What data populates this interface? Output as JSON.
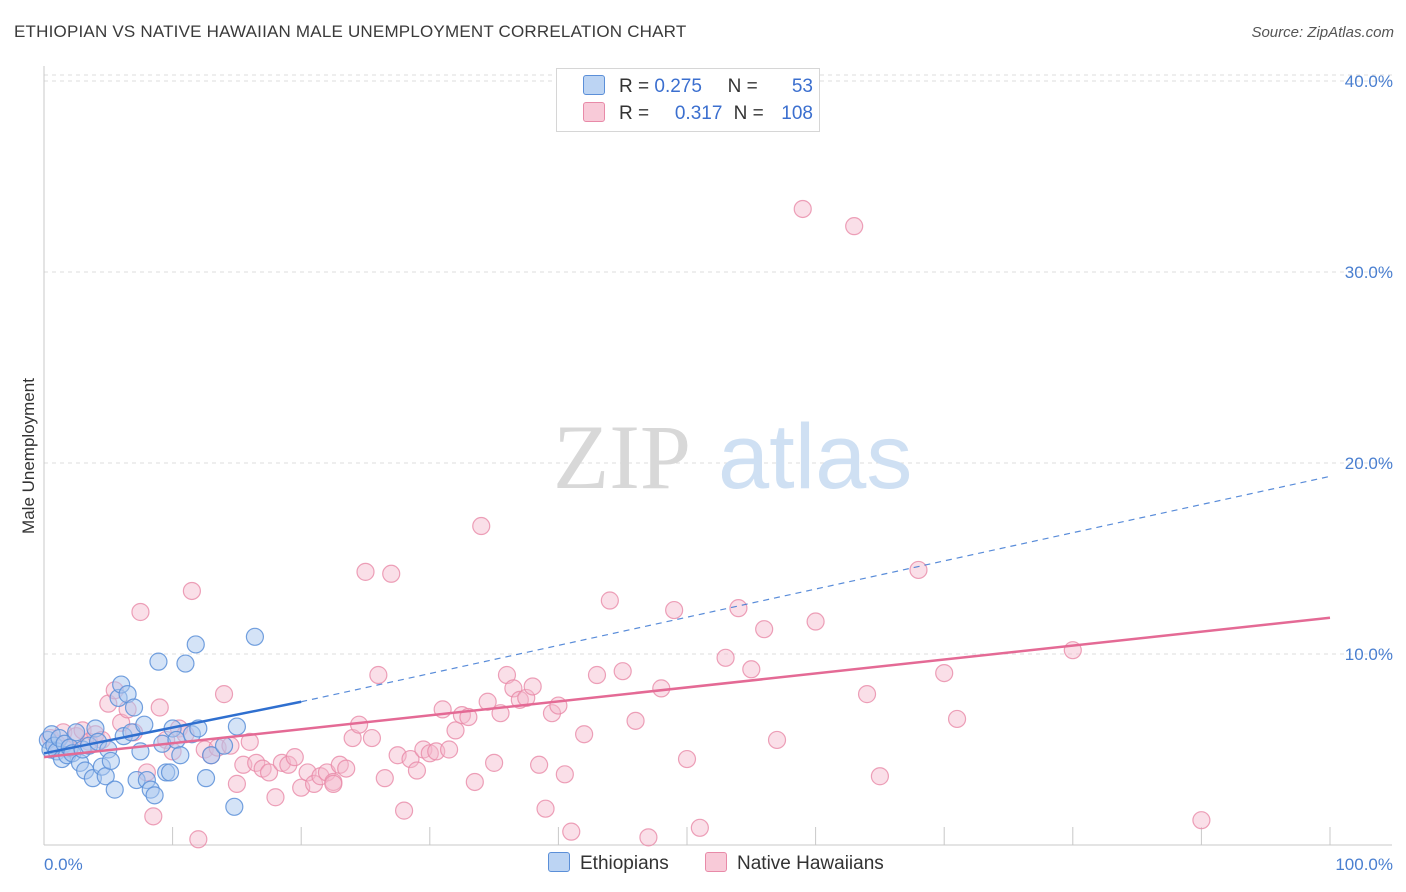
{
  "title": "ETHIOPIAN VS NATIVE HAWAIIAN MALE UNEMPLOYMENT CORRELATION CHART",
  "source": "Source: ZipAtlas.com",
  "watermark": {
    "zip": "ZIP",
    "atlas": "atlas"
  },
  "colors": {
    "blue_fill": "#a9c8f0",
    "blue_stroke": "#5b8fd8",
    "blue_line": "#2f6fcf",
    "pink_fill": "#f5b8cb",
    "pink_stroke": "#e88aa8",
    "pink_line": "#e46a95",
    "tick_text": "#4a7fd0",
    "grid": "#dddddd"
  },
  "legend": {
    "rows": [
      {
        "r_label": "R =",
        "r_value": "0.275",
        "n_label": "N =",
        "n_value": "53"
      },
      {
        "r_label": "R =",
        "r_value": "0.317",
        "n_label": "N =",
        "n_value": "108"
      }
    ]
  },
  "bottom_legend": [
    "Ethiopians",
    "Native Hawaiians"
  ],
  "chart_data": {
    "type": "scatter",
    "title": "ETHIOPIAN VS NATIVE HAWAIIAN MALE UNEMPLOYMENT CORRELATION CHART",
    "xlabel": "",
    "ylabel": "Male Unemployment",
    "xlim": [
      0,
      100
    ],
    "ylim": [
      0,
      40
    ],
    "x_tick_labels": [
      "0.0%",
      "100.0%"
    ],
    "y_ticks": [
      10,
      20,
      30,
      40
    ],
    "y_tick_labels": [
      "10.0%",
      "20.0%",
      "30.0%",
      "40.0%"
    ],
    "grid": true,
    "series": [
      {
        "name": "Ethiopians",
        "r": 0.275,
        "n": 53,
        "trend": {
          "x0": 0,
          "y0": 4.8,
          "x1": 20,
          "y1": 7.5,
          "dashed_to_x": 100,
          "dashed_to_y": 19.3
        },
        "points": [
          [
            0.3,
            5.5
          ],
          [
            0.5,
            5.0
          ],
          [
            0.6,
            5.8
          ],
          [
            0.8,
            5.2
          ],
          [
            1.0,
            4.9
          ],
          [
            1.2,
            5.6
          ],
          [
            1.4,
            4.5
          ],
          [
            1.6,
            5.3
          ],
          [
            1.8,
            4.7
          ],
          [
            2.0,
            5.1
          ],
          [
            2.2,
            4.8
          ],
          [
            2.5,
            5.9
          ],
          [
            2.8,
            4.3
          ],
          [
            3.0,
            5.0
          ],
          [
            3.2,
            3.9
          ],
          [
            3.5,
            5.2
          ],
          [
            3.8,
            3.5
          ],
          [
            4.0,
            6.1
          ],
          [
            4.2,
            5.4
          ],
          [
            4.5,
            4.1
          ],
          [
            4.8,
            3.6
          ],
          [
            5.0,
            5.0
          ],
          [
            5.2,
            4.4
          ],
          [
            5.5,
            2.9
          ],
          [
            5.8,
            7.7
          ],
          [
            6.0,
            8.4
          ],
          [
            6.2,
            5.7
          ],
          [
            6.5,
            7.9
          ],
          [
            6.8,
            5.9
          ],
          [
            7.0,
            7.2
          ],
          [
            7.2,
            3.4
          ],
          [
            7.5,
            4.9
          ],
          [
            7.8,
            6.3
          ],
          [
            8.0,
            3.4
          ],
          [
            8.3,
            2.9
          ],
          [
            8.6,
            2.6
          ],
          [
            8.9,
            9.6
          ],
          [
            9.2,
            5.3
          ],
          [
            9.5,
            3.8
          ],
          [
            9.8,
            3.8
          ],
          [
            10.0,
            6.1
          ],
          [
            10.3,
            5.5
          ],
          [
            10.6,
            4.7
          ],
          [
            11.0,
            9.5
          ],
          [
            11.5,
            5.8
          ],
          [
            12.0,
            6.1
          ],
          [
            12.6,
            3.5
          ],
          [
            13.0,
            4.7
          ],
          [
            14.0,
            5.2
          ],
          [
            15.0,
            6.2
          ],
          [
            11.8,
            10.5
          ],
          [
            14.8,
            2.0
          ],
          [
            16.4,
            10.9
          ]
        ]
      },
      {
        "name": "Native Hawaiians",
        "r": 0.317,
        "n": 108,
        "trend": {
          "x0": 0,
          "y0": 4.6,
          "x1": 100,
          "y1": 11.9
        },
        "points": [
          [
            0.5,
            5.6
          ],
          [
            1.0,
            5.3
          ],
          [
            1.5,
            5.9
          ],
          [
            2.0,
            5.0
          ],
          [
            2.5,
            5.7
          ],
          [
            3.0,
            6.0
          ],
          [
            3.5,
            5.4
          ],
          [
            4.0,
            5.8
          ],
          [
            4.5,
            5.5
          ],
          [
            5.0,
            7.4
          ],
          [
            5.5,
            8.1
          ],
          [
            6.0,
            6.4
          ],
          [
            6.5,
            7.1
          ],
          [
            7.0,
            5.9
          ],
          [
            7.5,
            12.2
          ],
          [
            8.0,
            3.8
          ],
          [
            8.5,
            1.5
          ],
          [
            9.0,
            7.2
          ],
          [
            9.5,
            5.5
          ],
          [
            10.0,
            4.9
          ],
          [
            10.5,
            6.1
          ],
          [
            11.0,
            5.8
          ],
          [
            11.5,
            13.3
          ],
          [
            12.0,
            0.3
          ],
          [
            12.5,
            5.0
          ],
          [
            13.0,
            4.7
          ],
          [
            13.5,
            5.1
          ],
          [
            14.0,
            7.9
          ],
          [
            14.5,
            5.2
          ],
          [
            15.0,
            3.2
          ],
          [
            15.5,
            4.2
          ],
          [
            16.0,
            5.4
          ],
          [
            16.5,
            4.3
          ],
          [
            17.0,
            4.0
          ],
          [
            17.5,
            3.8
          ],
          [
            18.0,
            2.5
          ],
          [
            18.5,
            4.3
          ],
          [
            19.0,
            4.2
          ],
          [
            19.5,
            4.6
          ],
          [
            20.0,
            3.0
          ],
          [
            20.5,
            3.8
          ],
          [
            21.0,
            3.2
          ],
          [
            21.5,
            3.6
          ],
          [
            22.0,
            3.8
          ],
          [
            22.5,
            3.3
          ],
          [
            23.0,
            4.2
          ],
          [
            23.5,
            4.0
          ],
          [
            24.0,
            5.6
          ],
          [
            24.5,
            6.3
          ],
          [
            25.0,
            14.3
          ],
          [
            25.5,
            5.6
          ],
          [
            26.0,
            8.9
          ],
          [
            26.5,
            3.5
          ],
          [
            27.0,
            14.2
          ],
          [
            27.5,
            4.7
          ],
          [
            28.0,
            1.8
          ],
          [
            28.5,
            4.5
          ],
          [
            29.0,
            3.9
          ],
          [
            29.5,
            5.0
          ],
          [
            30.0,
            4.8
          ],
          [
            30.5,
            4.9
          ],
          [
            31.0,
            7.1
          ],
          [
            31.5,
            5.0
          ],
          [
            32.0,
            6.0
          ],
          [
            32.5,
            6.8
          ],
          [
            33.0,
            6.7
          ],
          [
            33.5,
            3.3
          ],
          [
            34.0,
            16.7
          ],
          [
            34.5,
            7.5
          ],
          [
            35.0,
            4.3
          ],
          [
            35.5,
            6.9
          ],
          [
            36.0,
            8.9
          ],
          [
            36.5,
            8.2
          ],
          [
            37.0,
            7.6
          ],
          [
            37.5,
            7.7
          ],
          [
            38.0,
            8.3
          ],
          [
            38.5,
            4.2
          ],
          [
            39.0,
            1.9
          ],
          [
            39.5,
            6.9
          ],
          [
            40.0,
            7.3
          ],
          [
            40.5,
            3.7
          ],
          [
            41.0,
            0.7
          ],
          [
            42.0,
            5.8
          ],
          [
            43.0,
            8.9
          ],
          [
            44.0,
            12.8
          ],
          [
            45.0,
            9.1
          ],
          [
            46.0,
            6.5
          ],
          [
            47.0,
            0.4
          ],
          [
            48.0,
            8.2
          ],
          [
            49.0,
            12.3
          ],
          [
            50.0,
            4.5
          ],
          [
            51.0,
            0.9
          ],
          [
            53.0,
            9.8
          ],
          [
            54.0,
            12.4
          ],
          [
            55.0,
            9.2
          ],
          [
            56.0,
            11.3
          ],
          [
            57.0,
            5.5
          ],
          [
            59.0,
            33.3
          ],
          [
            60.0,
            11.7
          ],
          [
            63.0,
            32.4
          ],
          [
            64.0,
            7.9
          ],
          [
            65.0,
            3.6
          ],
          [
            68.0,
            14.4
          ],
          [
            70.0,
            9.0
          ],
          [
            71.0,
            6.6
          ],
          [
            80.0,
            10.2
          ],
          [
            90.0,
            1.3
          ],
          [
            22.5,
            3.2
          ]
        ]
      }
    ]
  }
}
